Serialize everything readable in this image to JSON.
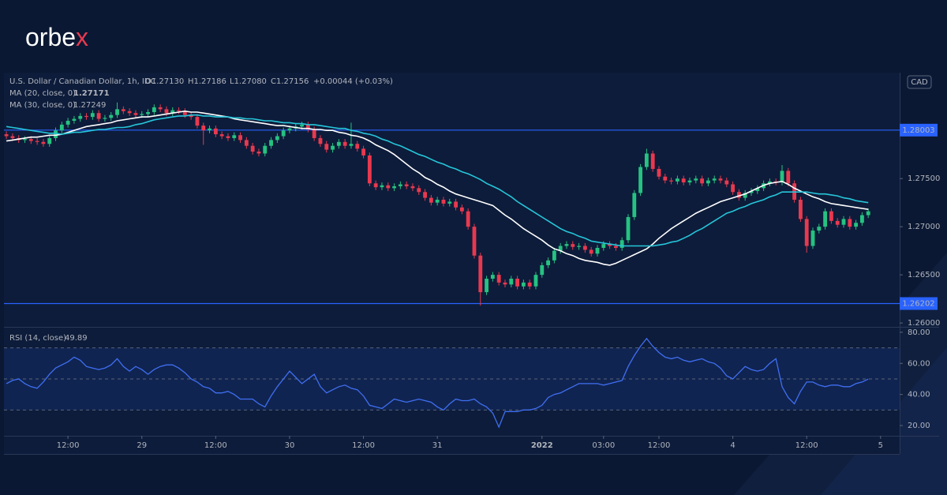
{
  "logo": {
    "text": "orbe",
    "accent": "x"
  },
  "chart_data": {
    "type": "candlestick",
    "title": "U.S. Dollar / Canadian Dollar, 1h, IDC",
    "ohlc": [
      "O1.27130",
      "H1.27186",
      "L1.27080",
      "C1.27156"
    ],
    "change": "+0.00044 (+0.03%)",
    "currency": "CAD",
    "up_color": "#26c281",
    "down_color": "#e8394f",
    "open": [
      1.2796,
      1.2794,
      1.2792,
      1.279,
      1.2791,
      1.2789,
      1.2788,
      1.2786,
      1.2792,
      1.28,
      1.2806,
      1.281,
      1.2812,
      1.2815,
      1.2814,
      1.2818,
      1.2812,
      1.2813,
      1.2816,
      1.2822,
      1.282,
      1.2818,
      1.2816,
      1.2817,
      1.2819,
      1.2824,
      1.2822,
      1.2818,
      1.2821,
      1.282,
      1.2816,
      1.2814,
      1.2805,
      1.28,
      1.2802,
      1.2796,
      1.2794,
      1.2792,
      1.2795,
      1.279,
      1.2784,
      1.2778,
      1.2776,
      1.2784,
      1.279,
      1.2794,
      1.28,
      1.2802,
      1.2804,
      1.2806,
      1.2801,
      1.2792,
      1.2786,
      1.278,
      1.2784,
      1.2788,
      1.2784,
      1.2786,
      1.2781,
      1.2774,
      1.2745,
      1.2741,
      1.2743,
      1.274,
      1.2742,
      1.2744,
      1.2742,
      1.274,
      1.2736,
      1.273,
      1.2725,
      1.2728,
      1.2724,
      1.2726,
      1.272,
      1.2716,
      1.27,
      1.267,
      1.2632,
      1.2646,
      1.265,
      1.2642,
      1.264,
      1.2646,
      1.2638,
      1.2642,
      1.2638,
      1.265,
      1.266,
      1.2665,
      1.2675,
      1.268,
      1.2682,
      1.2679,
      1.268,
      1.2676,
      1.2672,
      1.2678,
      1.2682,
      1.268,
      1.2678,
      1.2686,
      1.271,
      1.2735,
      1.2762,
      1.2776,
      1.276,
      1.2752,
      1.2748,
      1.2747,
      1.275,
      1.2746,
      1.2748,
      1.275,
      1.2745,
      1.2748,
      1.275,
      1.2748,
      1.2744,
      1.2736,
      1.273,
      1.2735,
      1.2737,
      1.274,
      1.2745,
      1.2747,
      1.2746,
      1.2758,
      1.2745,
      1.2728,
      1.2708,
      1.268,
      1.2696,
      1.27,
      1.2716,
      1.2706,
      1.2702,
      1.2708,
      1.27,
      1.2704,
      1.2712
    ],
    "high": [
      1.2799,
      1.2797,
      1.2795,
      1.2794,
      1.2794,
      1.2792,
      1.2791,
      1.2795,
      1.2803,
      1.2809,
      1.2813,
      1.2815,
      1.2818,
      1.2818,
      1.2821,
      1.2821,
      1.2816,
      1.2819,
      1.2829,
      1.2825,
      1.2823,
      1.2821,
      1.282,
      1.2822,
      1.2827,
      1.2827,
      1.2825,
      1.2824,
      1.2824,
      1.2823,
      1.2819,
      1.2817,
      1.2808,
      1.2805,
      1.2805,
      1.2799,
      1.2797,
      1.2798,
      1.2798,
      1.2793,
      1.2787,
      1.2781,
      1.2787,
      1.2793,
      1.2797,
      1.2803,
      1.2805,
      1.2807,
      1.2809,
      1.2809,
      1.2804,
      1.2795,
      1.2789,
      1.2787,
      1.2791,
      1.2791,
      1.2808,
      1.2789,
      1.2784,
      1.2777,
      1.2748,
      1.2746,
      1.2746,
      1.2745,
      1.2747,
      1.2747,
      1.2745,
      1.2743,
      1.2739,
      1.2733,
      1.2731,
      1.2731,
      1.2729,
      1.2729,
      1.2723,
      1.2719,
      1.2703,
      1.2673,
      1.2649,
      1.2653,
      1.2653,
      1.2645,
      1.2649,
      1.2649,
      1.2645,
      1.2645,
      1.2653,
      1.2663,
      1.2668,
      1.2678,
      1.2683,
      1.2685,
      1.2685,
      1.2683,
      1.2683,
      1.2679,
      1.2681,
      1.2685,
      1.2685,
      1.2683,
      1.2689,
      1.2713,
      1.2738,
      1.2765,
      1.2781,
      1.2779,
      1.2763,
      1.2755,
      1.2751,
      1.2753,
      1.2753,
      1.2751,
      1.2753,
      1.2753,
      1.2751,
      1.2753,
      1.2753,
      1.2751,
      1.2747,
      1.2739,
      1.2738,
      1.274,
      1.2743,
      1.2748,
      1.275,
      1.275,
      1.2764,
      1.2761,
      1.2748,
      1.2731,
      1.2711,
      1.2699,
      1.2703,
      1.2719,
      1.2719,
      1.2709,
      1.2711,
      1.2711,
      1.2707,
      1.2715,
      1.2719
    ],
    "low": [
      1.2791,
      1.2789,
      1.2787,
      1.2787,
      1.2786,
      1.2785,
      1.2783,
      1.2783,
      1.2789,
      1.2797,
      1.2803,
      1.2807,
      1.2809,
      1.2811,
      1.2811,
      1.2809,
      1.2809,
      1.281,
      1.2813,
      1.2817,
      1.2815,
      1.2813,
      1.2813,
      1.2814,
      1.2816,
      1.2819,
      1.2815,
      1.2815,
      1.2817,
      1.2813,
      1.2811,
      1.2802,
      1.2785,
      1.2797,
      1.2793,
      1.2791,
      1.2789,
      1.2789,
      1.2787,
      1.2781,
      1.2775,
      1.2773,
      1.2773,
      1.2781,
      1.2787,
      1.2791,
      1.2797,
      1.2799,
      1.2801,
      1.2798,
      1.2789,
      1.2783,
      1.2777,
      1.2777,
      1.2781,
      1.2781,
      1.2781,
      1.2778,
      1.2771,
      1.2742,
      1.2738,
      1.2738,
      1.2737,
      1.2737,
      1.2739,
      1.2739,
      1.2737,
      1.2733,
      1.2727,
      1.2722,
      1.2722,
      1.2721,
      1.2721,
      1.2717,
      1.2713,
      1.2697,
      1.2667,
      1.2618,
      1.2629,
      1.2643,
      1.2639,
      1.2637,
      1.2637,
      1.2635,
      1.2635,
      1.2635,
      1.2635,
      1.2647,
      1.2657,
      1.2662,
      1.2672,
      1.2677,
      1.2676,
      1.2676,
      1.2673,
      1.2669,
      1.2669,
      1.2675,
      1.2677,
      1.2675,
      1.2675,
      1.2683,
      1.2707,
      1.2732,
      1.2759,
      1.2757,
      1.2749,
      1.2745,
      1.2744,
      1.2744,
      1.2743,
      1.2743,
      1.2745,
      1.2742,
      1.2742,
      1.2745,
      1.2745,
      1.2741,
      1.2733,
      1.2727,
      1.2727,
      1.2732,
      1.2734,
      1.2737,
      1.2742,
      1.2743,
      1.2743,
      1.2742,
      1.2725,
      1.2705,
      1.2673,
      1.2677,
      1.2693,
      1.2697,
      1.2703,
      1.2699,
      1.2699,
      1.2697,
      1.2697,
      1.2701,
      1.2709
    ],
    "close": [
      1.2794,
      1.2792,
      1.279,
      1.2791,
      1.2789,
      1.2788,
      1.2786,
      1.2792,
      1.28,
      1.2806,
      1.281,
      1.2812,
      1.2815,
      1.2814,
      1.2818,
      1.2812,
      1.2813,
      1.2816,
      1.2822,
      1.282,
      1.2818,
      1.2816,
      1.2817,
      1.2819,
      1.2824,
      1.2822,
      1.2818,
      1.2821,
      1.282,
      1.2816,
      1.2814,
      1.2805,
      1.28,
      1.2802,
      1.2796,
      1.2794,
      1.2792,
      1.2795,
      1.279,
      1.2784,
      1.2778,
      1.2776,
      1.2784,
      1.279,
      1.2794,
      1.28,
      1.2802,
      1.2804,
      1.2806,
      1.2801,
      1.2792,
      1.2786,
      1.278,
      1.2784,
      1.2788,
      1.2784,
      1.2786,
      1.2781,
      1.2774,
      1.2745,
      1.2741,
      1.2743,
      1.274,
      1.2742,
      1.2744,
      1.2742,
      1.274,
      1.2736,
      1.273,
      1.2725,
      1.2728,
      1.2724,
      1.2726,
      1.272,
      1.2716,
      1.27,
      1.267,
      1.2632,
      1.2646,
      1.265,
      1.2642,
      1.264,
      1.2646,
      1.2638,
      1.2642,
      1.2638,
      1.265,
      1.266,
      1.2665,
      1.2675,
      1.268,
      1.2682,
      1.2679,
      1.268,
      1.2676,
      1.2672,
      1.2678,
      1.2682,
      1.268,
      1.2678,
      1.2686,
      1.271,
      1.2735,
      1.2762,
      1.2776,
      1.276,
      1.2752,
      1.2748,
      1.2747,
      1.275,
      1.2746,
      1.2748,
      1.275,
      1.2745,
      1.2748,
      1.275,
      1.2748,
      1.2744,
      1.2736,
      1.273,
      1.2735,
      1.2737,
      1.274,
      1.2745,
      1.2747,
      1.2746,
      1.2758,
      1.2745,
      1.2728,
      1.2708,
      1.268,
      1.2696,
      1.27,
      1.2716,
      1.2706,
      1.2702,
      1.2708,
      1.27,
      1.2704,
      1.2712,
      1.2716
    ],
    "series": [
      {
        "name": "MA (20, close, 0)",
        "last": 1.27171,
        "color": "#ffffff",
        "values": [
          1.2789,
          1.279,
          1.2791,
          1.2792,
          1.2793,
          1.2793,
          1.2794,
          1.2795,
          1.2795,
          1.2796,
          1.2798,
          1.28,
          1.2802,
          1.2804,
          1.2805,
          1.2806,
          1.2807,
          1.2808,
          1.281,
          1.2811,
          1.2812,
          1.2813,
          1.2814,
          1.2814,
          1.2815,
          1.2816,
          1.2817,
          1.2818,
          1.2819,
          1.282,
          1.2819,
          1.2819,
          1.2818,
          1.2817,
          1.2816,
          1.2815,
          1.2814,
          1.2812,
          1.2811,
          1.281,
          1.2809,
          1.2808,
          1.2807,
          1.2806,
          1.2805,
          1.2805,
          1.2804,
          1.2803,
          1.2802,
          1.2802,
          1.2801,
          1.2801,
          1.28,
          1.28,
          1.2798,
          1.2797,
          1.2795,
          1.2794,
          1.2792,
          1.2789,
          1.2785,
          1.2782,
          1.2779,
          1.2775,
          1.277,
          1.2765,
          1.276,
          1.2756,
          1.2751,
          1.2748,
          1.2744,
          1.2741,
          1.2737,
          1.2734,
          1.2732,
          1.273,
          1.2728,
          1.2726,
          1.2724,
          1.2722,
          1.2717,
          1.2712,
          1.2708,
          1.2703,
          1.2698,
          1.2694,
          1.269,
          1.2686,
          1.2681,
          1.2677,
          1.2675,
          1.2672,
          1.267,
          1.2667,
          1.2665,
          1.2664,
          1.2663,
          1.2661,
          1.266,
          1.2662,
          1.2665,
          1.2668,
          1.2671,
          1.2674,
          1.2677,
          1.2682,
          1.2688,
          1.2693,
          1.2698,
          1.2702,
          1.2706,
          1.271,
          1.2714,
          1.2717,
          1.272,
          1.2723,
          1.2726,
          1.2728,
          1.273,
          1.2732,
          1.2734,
          1.2737,
          1.274,
          1.2743,
          1.2745,
          1.2746,
          1.2747,
          1.2744,
          1.274,
          1.2737,
          1.2734,
          1.2731,
          1.2729,
          1.2726,
          1.2724,
          1.2723,
          1.2722,
          1.2721,
          1.272,
          1.2719,
          1.2718
        ]
      },
      {
        "name": "MA (30, close, 0)",
        "last": 1.27249,
        "color": "#26c6da",
        "values": [
          1.2804,
          1.2803,
          1.2802,
          1.2801,
          1.28,
          1.2799,
          1.2798,
          1.2797,
          1.2797,
          1.2796,
          1.2797,
          1.2798,
          1.2798,
          1.2799,
          1.28,
          1.2801,
          1.2801,
          1.2802,
          1.2803,
          1.2803,
          1.2804,
          1.2806,
          1.2807,
          1.2809,
          1.2811,
          1.2812,
          1.2813,
          1.2814,
          1.2815,
          1.2815,
          1.2816,
          1.2816,
          1.2815,
          1.2815,
          1.2814,
          1.2814,
          1.2814,
          1.2813,
          1.2813,
          1.2812,
          1.2812,
          1.2811,
          1.281,
          1.281,
          1.2809,
          1.2808,
          1.2808,
          1.2807,
          1.2807,
          1.2806,
          1.2806,
          1.2805,
          1.2804,
          1.2803,
          1.2802,
          1.2802,
          1.28,
          1.2799,
          1.2797,
          1.2796,
          1.2794,
          1.2791,
          1.2789,
          1.2786,
          1.2784,
          1.2781,
          1.2778,
          1.2775,
          1.2773,
          1.277,
          1.2767,
          1.2765,
          1.2762,
          1.276,
          1.2757,
          1.2755,
          1.2752,
          1.2749,
          1.2745,
          1.2742,
          1.2739,
          1.2735,
          1.2731,
          1.2726,
          1.2722,
          1.2718,
          1.2714,
          1.271,
          1.2706,
          1.2702,
          1.2698,
          1.2695,
          1.2693,
          1.269,
          1.2688,
          1.2685,
          1.2684,
          1.2683,
          1.2682,
          1.2681,
          1.268,
          1.268,
          1.268,
          1.268,
          1.268,
          1.268,
          1.2681,
          1.2682,
          1.2684,
          1.2685,
          1.2688,
          1.2691,
          1.2695,
          1.2698,
          1.2702,
          1.2706,
          1.271,
          1.2714,
          1.2716,
          1.2719,
          1.2721,
          1.2724,
          1.2726,
          1.2728,
          1.2731,
          1.2733,
          1.2736,
          1.2736,
          1.2736,
          1.2736,
          1.2736,
          1.2735,
          1.2734,
          1.2734,
          1.2733,
          1.2732,
          1.273,
          1.2729,
          1.2727,
          1.2726,
          1.2725
        ]
      }
    ],
    "levels": [
      1.28003,
      1.26202
    ],
    "level_color": "#2962ff",
    "ylim": [
      1.2596,
      1.286
    ],
    "yticks": [
      {
        "value": 1.26,
        "label": "1.26000"
      },
      {
        "value": 1.265,
        "label": "1.26500"
      },
      {
        "value": 1.27,
        "label": "1.27000"
      },
      {
        "value": 1.275,
        "label": "1.27500"
      }
    ],
    "xlim": [
      -0.4,
      145.1
    ],
    "xticks": [
      {
        "value": 10,
        "label": "12:00"
      },
      {
        "value": 22,
        "label": "29"
      },
      {
        "value": 34,
        "label": "12:00"
      },
      {
        "value": 46,
        "label": "30"
      },
      {
        "value": 58,
        "label": "12:00"
      },
      {
        "value": 70,
        "label": "31"
      },
      {
        "value": 87,
        "label": "2022"
      },
      {
        "value": 97,
        "label": "03:00"
      },
      {
        "value": 106,
        "label": "12:00"
      },
      {
        "value": 118,
        "label": "4"
      },
      {
        "value": 130,
        "label": "12:00"
      },
      {
        "value": 142,
        "label": "5"
      }
    ],
    "rsi": {
      "name": "RSI (14, close)",
      "last": 49.89,
      "color": "#3f6ff2",
      "values": [
        47,
        49,
        50,
        47,
        45,
        44,
        48,
        53,
        57,
        59,
        61,
        64,
        62,
        58,
        57,
        56,
        57,
        59,
        63,
        58,
        55,
        58,
        56,
        53,
        56,
        58,
        59,
        59,
        57,
        54,
        50,
        48,
        45,
        44,
        41,
        41,
        42,
        40,
        37,
        37,
        37,
        34,
        32,
        39,
        45,
        50,
        55,
        51,
        47,
        50,
        53,
        45,
        41,
        43,
        45,
        46,
        44,
        43,
        39,
        33,
        32,
        31,
        34,
        37,
        36,
        35,
        36,
        37,
        36,
        35,
        32,
        30,
        34,
        37,
        36,
        36,
        37,
        34,
        32,
        28,
        19,
        29,
        29,
        29,
        30,
        30,
        31,
        33,
        38,
        40,
        41,
        43,
        45,
        47,
        47,
        47,
        47,
        46,
        47,
        48,
        49,
        58,
        65,
        71,
        76,
        71,
        67,
        64,
        63,
        64,
        62,
        61,
        62,
        63,
        61,
        60,
        57,
        52,
        50,
        54,
        58,
        56,
        55,
        56,
        60,
        63,
        45,
        38,
        34,
        42,
        48,
        48,
        46,
        45,
        46,
        46,
        45,
        45,
        47,
        48,
        49.89
      ],
      "ylim": [
        13.4,
        83
      ],
      "yticks": [
        {
          "value": 20,
          "label": "20.00"
        },
        {
          "value": 40,
          "label": "40.00"
        },
        {
          "value": 60,
          "label": "60.00"
        },
        {
          "value": 80,
          "label": "80.00"
        }
      ],
      "bands": [
        30,
        50,
        70
      ]
    }
  }
}
